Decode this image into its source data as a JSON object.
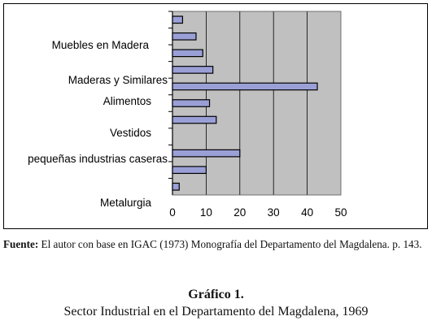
{
  "chart_data": {
    "type": "bar",
    "orientation": "horizontal",
    "xlim": [
      0,
      50
    ],
    "xticks": [
      "0",
      "10",
      "20",
      "30",
      "40",
      "50"
    ],
    "category_labels": [
      "Muebles en Madera",
      "Maderas y Similares",
      "Alimentos",
      "Vestidos",
      "pequeñas industrias caseras",
      "Metalurgia"
    ],
    "values": [
      3,
      7,
      9,
      12,
      43,
      11,
      13,
      0,
      20,
      10,
      2
    ],
    "bar_color": "#9aa0d6",
    "plot_background": "#c0c0c0",
    "grid": true,
    "legend": "none"
  },
  "source": {
    "label": "Fuente:",
    "text": " El autor con base en IGAC (1973) Monografía del Departamento del Magdalena. p. 143."
  },
  "caption": {
    "number": "Gráfico 1.",
    "title": "Sector Industrial en el Departamento del Magdalena, 1969"
  }
}
